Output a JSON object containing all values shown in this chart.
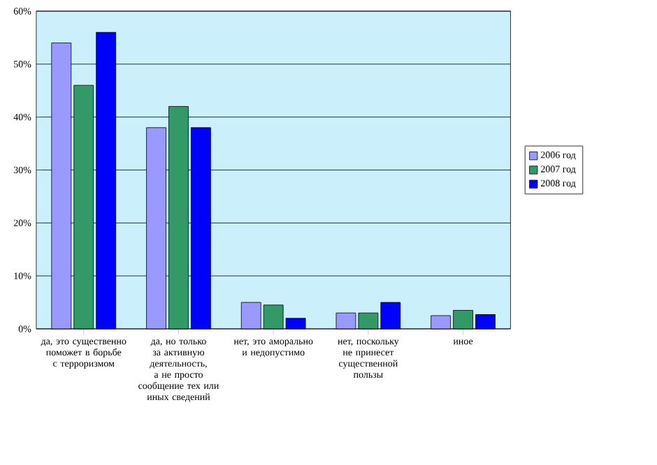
{
  "chart_data": {
    "type": "bar",
    "categories": [
      "да, это существенно поможет в борьбе с терроризмом",
      "да, но только за активную деятельность, а не просто сообщение тех или иных сведений",
      "нет, это аморально и недопустимо",
      "нет, поскольку не принесет существенной пользы",
      "иное"
    ],
    "series": [
      {
        "name": "2006 год",
        "color": "#9999ff",
        "values": [
          54,
          38,
          5,
          3,
          2.5
        ]
      },
      {
        "name": "2007 год",
        "color": "#339966",
        "values": [
          46,
          42,
          4.5,
          3,
          3.5
        ]
      },
      {
        "name": "2008 год",
        "color": "#0000ff",
        "values": [
          56,
          38,
          2,
          5,
          2.7
        ]
      }
    ],
    "ylim": [
      0,
      60
    ],
    "yticks": [
      {
        "value": 0,
        "label": "0%"
      },
      {
        "value": 10,
        "label": "10%"
      },
      {
        "value": 20,
        "label": "20%"
      },
      {
        "value": 30,
        "label": "30%"
      },
      {
        "value": 40,
        "label": "40%"
      },
      {
        "value": 50,
        "label": "50%"
      },
      {
        "value": 60,
        "label": "60%"
      }
    ],
    "grid": "y",
    "legend": "right"
  }
}
